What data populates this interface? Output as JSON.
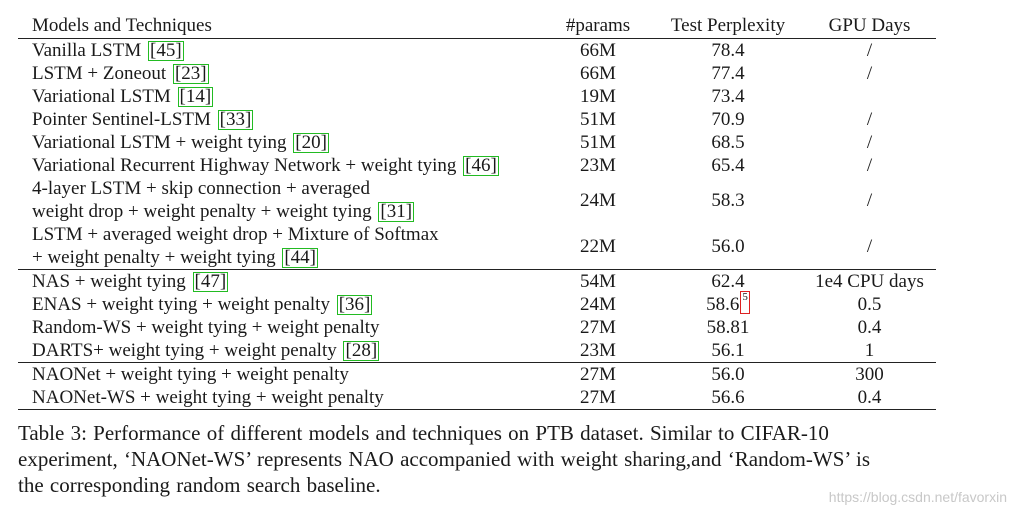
{
  "table": {
    "headers": {
      "model": "Models and Techniques",
      "params": "#params",
      "ppl": "Test Perplexity",
      "gpu": "GPU Days"
    },
    "groups": [
      {
        "rows": [
          {
            "lines": [
              "Vanilla LSTM"
            ],
            "cite": "45",
            "params": "66M",
            "ppl": "78.4",
            "gpu": "/"
          },
          {
            "lines": [
              "LSTM + Zoneout"
            ],
            "cite": "23",
            "params": "66M",
            "ppl": "77.4",
            "gpu": "/"
          },
          {
            "lines": [
              "Variational LSTM"
            ],
            "cite": "14",
            "params": "19M",
            "ppl": "73.4",
            "gpu": ""
          },
          {
            "lines": [
              "Pointer Sentinel-LSTM"
            ],
            "cite": "33",
            "params": "51M",
            "ppl": "70.9",
            "gpu": "/"
          },
          {
            "lines": [
              "Variational LSTM + weight tying"
            ],
            "cite": "20",
            "params": "51M",
            "ppl": "68.5",
            "gpu": "/"
          },
          {
            "lines": [
              "Variational Recurrent Highway Network + weight tying"
            ],
            "cite": "46",
            "params": "23M",
            "ppl": "65.4",
            "gpu": "/"
          },
          {
            "lines": [
              "4-layer LSTM + skip connection + averaged",
              "weight drop + weight penalty + weight tying"
            ],
            "cite": "31",
            "params": "24M",
            "ppl": "58.3",
            "gpu": "/"
          },
          {
            "lines": [
              "LSTM + averaged weight drop + Mixture of Softmax",
              "+ weight penalty + weight tying"
            ],
            "cite": "44",
            "params": "22M",
            "ppl": "56.0",
            "gpu": "/"
          }
        ]
      },
      {
        "rows": [
          {
            "lines": [
              "NAS + weight tying"
            ],
            "cite": "47",
            "params": "54M",
            "ppl": "62.4",
            "gpu": "1e4 CPU days"
          },
          {
            "lines": [
              "ENAS + weight tying + weight penalty"
            ],
            "cite": "36",
            "params": "24M",
            "ppl": "58.6",
            "ppl_sup": "5",
            "gpu": "0.5"
          },
          {
            "lines": [
              "Random-WS + weight tying + weight penalty"
            ],
            "cite": "",
            "params": "27M",
            "ppl": "58.81",
            "gpu": "0.4"
          },
          {
            "lines": [
              "DARTS+ weight tying + weight penalty"
            ],
            "cite": "28",
            "params": "23M",
            "ppl": "56.1",
            "gpu": "1"
          }
        ]
      },
      {
        "rows": [
          {
            "lines": [
              "NAONet + weight tying + weight penalty"
            ],
            "cite": "",
            "params": "27M",
            "ppl": "56.0",
            "gpu": "300"
          },
          {
            "lines": [
              "NAONet-WS + weight tying + weight penalty"
            ],
            "cite": "",
            "params": "27M",
            "ppl": "56.6",
            "gpu": "0.4"
          }
        ]
      }
    ]
  },
  "caption": {
    "lines": [
      "Table 3: Performance of different models and techniques on PTB dataset. Similar to CIFAR-10",
      "experiment, ‘NAONet-WS’ represents NAO accompanied with weight sharing,and ‘Random-WS’ is",
      "the corresponding random search baseline."
    ]
  },
  "watermark": "https://blog.csdn.net/favorxin",
  "colors": {
    "cite_box": "#22bb22",
    "footnote_box": "#dd2222",
    "watermark": "#c8c8c8"
  }
}
